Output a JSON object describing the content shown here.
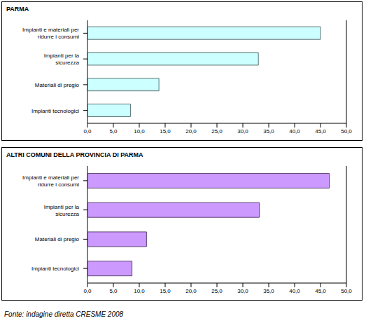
{
  "source": "Fonte: indagine diretta CRESME 2008",
  "chart_data": [
    {
      "type": "bar",
      "orientation": "horizontal",
      "title": "PARMA",
      "categories": [
        "Impianti e materiali per ridurre i consumi",
        "Impianti per la sicurezza",
        "Materiali di pregio",
        "Impianti tecnologici"
      ],
      "values": [
        45.0,
        33.0,
        13.8,
        8.3
      ],
      "color": "#ccffff",
      "xlim": [
        0,
        50
      ],
      "xticks": [
        {
          "value": 0,
          "label": "0,0"
        },
        {
          "value": 5,
          "label": "5,0"
        },
        {
          "value": 10,
          "label": "10,0"
        },
        {
          "value": 15,
          "label": "15,0"
        },
        {
          "value": 20,
          "label": "20,0"
        },
        {
          "value": 25,
          "label": "25,0"
        },
        {
          "value": 30,
          "label": "30,0"
        },
        {
          "value": 35,
          "label": "35,0"
        },
        {
          "value": 40,
          "label": "40,0"
        },
        {
          "value": 45,
          "label": "45,0"
        },
        {
          "value": 50,
          "label": "50,0"
        }
      ],
      "grid": false
    },
    {
      "type": "bar",
      "orientation": "horizontal",
      "title": "ALTRI COMUNI DELLA PROVINCIA DI PARMA",
      "categories": [
        "Impianti e materiali per ridurre i consumi",
        "Impianti per la sicurezza",
        "Materiali di pregio",
        "Impianti tecnologici"
      ],
      "values": [
        46.7,
        33.2,
        11.4,
        8.6
      ],
      "color": "#cc99ff",
      "xlim": [
        0,
        50
      ],
      "xticks": [
        {
          "value": 0,
          "label": "0,0"
        },
        {
          "value": 5,
          "label": "5,0"
        },
        {
          "value": 10,
          "label": "10,0"
        },
        {
          "value": 15,
          "label": "15,0"
        },
        {
          "value": 20,
          "label": "20,0"
        },
        {
          "value": 25,
          "label": "25,0"
        },
        {
          "value": 30,
          "label": "30,0"
        },
        {
          "value": 35,
          "label": "35,0"
        },
        {
          "value": 40,
          "label": "40,0"
        },
        {
          "value": 45,
          "label": "45,0"
        },
        {
          "value": 50,
          "label": "50,0"
        }
      ],
      "grid": false
    }
  ]
}
